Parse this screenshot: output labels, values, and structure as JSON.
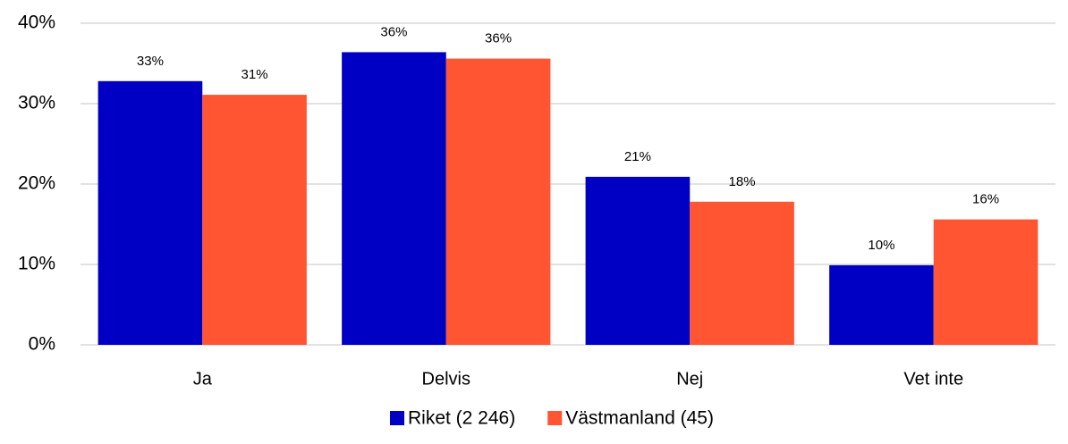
{
  "chart_data": {
    "type": "bar",
    "categories": [
      "Ja",
      "Delvis",
      "Nej",
      "Vet inte"
    ],
    "series": [
      {
        "name": "Riket (2 246)",
        "color": "#0000c4",
        "values": [
          32.8,
          36.4,
          20.9,
          9.9
        ],
        "value_labels": [
          "33%",
          "36%",
          "21%",
          "10%"
        ]
      },
      {
        "name": "Västmanland (45)",
        "color": "#ff5533",
        "values": [
          31.1,
          35.6,
          17.8,
          15.6
        ],
        "value_labels": [
          "31%",
          "36%",
          "18%",
          "16%"
        ]
      }
    ],
    "ylim": [
      0,
      40
    ],
    "yticks": [
      {
        "value": 0,
        "label": "0%"
      },
      {
        "value": 10,
        "label": "10%"
      },
      {
        "value": 20,
        "label": "20%"
      },
      {
        "value": 30,
        "label": "30%"
      },
      {
        "value": 40,
        "label": "40%"
      }
    ],
    "grid": true,
    "legend": "bottom"
  }
}
